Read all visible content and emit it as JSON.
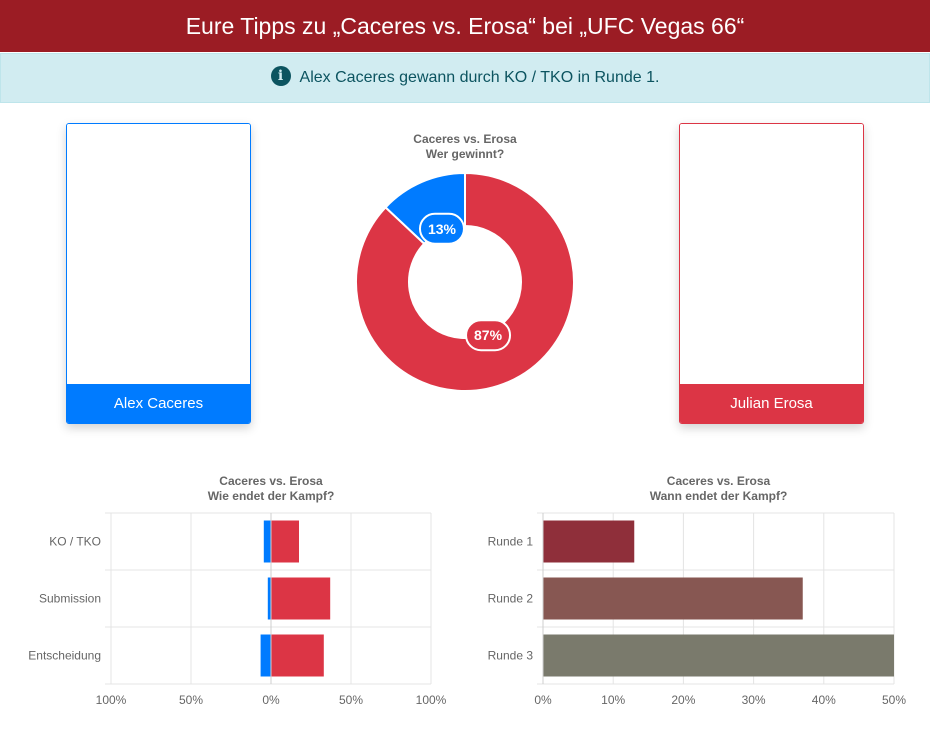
{
  "header": {
    "title": "Eure Tipps zu „Caceres vs. Erosa“ bei „UFC Vegas 66“"
  },
  "info": {
    "icon": "info-circle-icon",
    "text": "Alex Caceres gewann durch KO / TKO in Runde 1."
  },
  "fighters": {
    "left": {
      "name": "Alex Caceres",
      "color": "#007bff"
    },
    "right": {
      "name": "Julian Erosa",
      "color": "#dc3545"
    }
  },
  "chart_data": [
    {
      "type": "pie",
      "variant": "doughnut",
      "title": [
        "Caceres vs. Erosa",
        "Wer gewinnt?"
      ],
      "categories": [
        "Julian Erosa",
        "Alex Caceres"
      ],
      "values": [
        87,
        13
      ],
      "labels": [
        "87%",
        "13%"
      ],
      "colors": [
        "#dc3545",
        "#007bff"
      ]
    },
    {
      "type": "bar",
      "orientation": "horizontal",
      "stacked": "diverging",
      "title": [
        "Caceres vs. Erosa",
        "Wie endet der Kampf?"
      ],
      "categories": [
        "KO / TKO",
        "Submission",
        "Entscheidung"
      ],
      "series": [
        {
          "fighter": "Alex Caceres",
          "color": "#007bff",
          "values": [
            -9,
            -4,
            -13
          ]
        },
        {
          "fighter": "Julian Erosa",
          "color": "#dc3545",
          "values": [
            35,
            74,
            66
          ]
        }
      ],
      "xlim": [
        -200,
        200
      ],
      "xticks": [
        -200,
        -100,
        0,
        100,
        200
      ],
      "xtick_labels": [
        "100%",
        "50%",
        "0%",
        "50%",
        "100%"
      ],
      "grid": true
    },
    {
      "type": "bar",
      "orientation": "horizontal",
      "title": [
        "Caceres vs. Erosa",
        "Wann endet der Kampf?"
      ],
      "categories": [
        "Runde 1",
        "Runde 2",
        "Runde 3"
      ],
      "values": [
        13,
        37,
        50
      ],
      "colors": [
        "#8f2f3a",
        "#875752",
        "#7a7a6c"
      ],
      "xlim": [
        0,
        50
      ],
      "xticks": [
        0,
        10,
        20,
        30,
        40,
        50
      ],
      "xtick_labels": [
        "0%",
        "10%",
        "20%",
        "30%",
        "40%",
        "50%"
      ],
      "grid": true
    }
  ]
}
